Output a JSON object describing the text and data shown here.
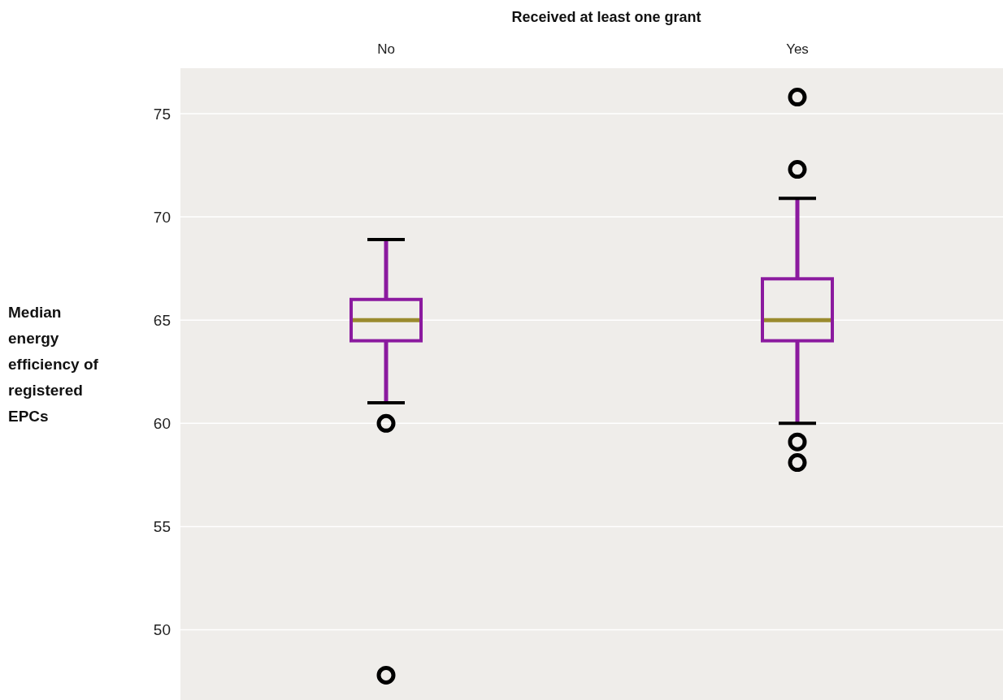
{
  "chart_data": {
    "type": "box",
    "title": "Received at least one grant",
    "ylabel": "Median energy efficiency of registered EPCs",
    "categories": [
      "No",
      "Yes"
    ],
    "boxes": [
      {
        "low": 61.0,
        "q1": 64.0,
        "median": 65.0,
        "q3": 66.0,
        "high": 68.9,
        "outliers": [
          60.0,
          47.8
        ]
      },
      {
        "low": 60.0,
        "q1": 64.0,
        "median": 65.0,
        "q3": 67.0,
        "high": 70.9,
        "outliers": [
          75.8,
          72.3,
          59.1,
          58.1
        ]
      }
    ],
    "color": "#8b1a9f",
    "ylim": [
      46.6,
      77.2
    ],
    "yticks": [
      50,
      55,
      60,
      65,
      70,
      75
    ],
    "grid": "y",
    "marker": "circle"
  }
}
